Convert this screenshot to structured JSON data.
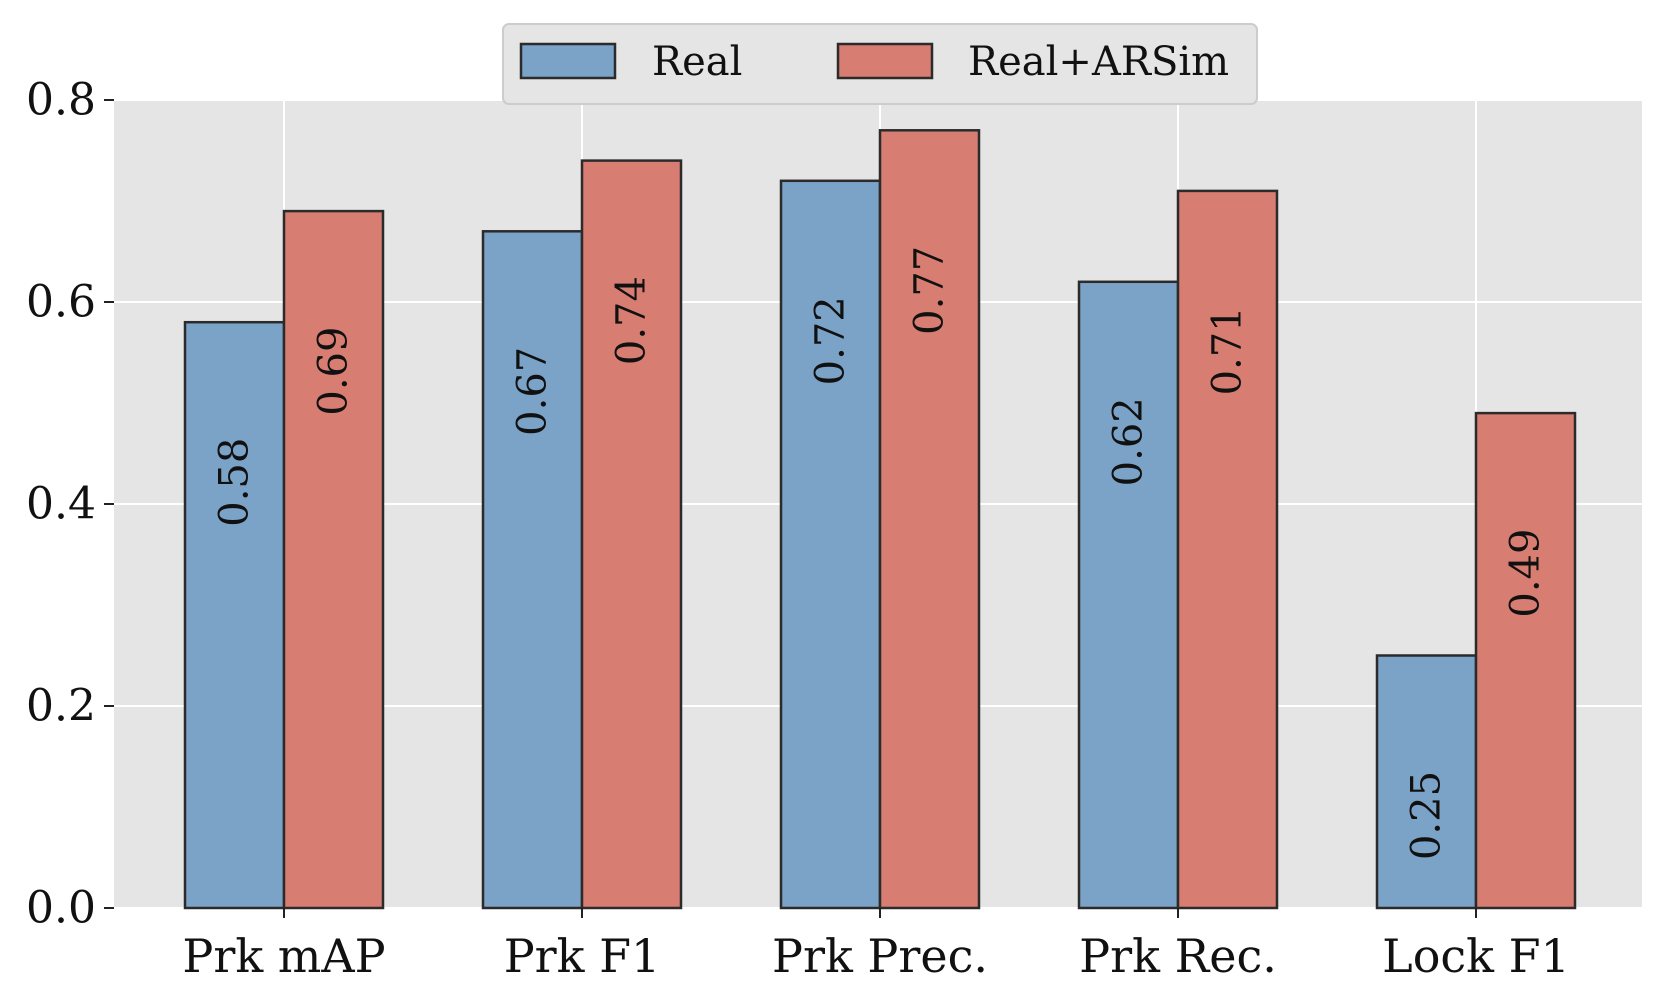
{
  "chart_data": {
    "type": "bar",
    "title": "",
    "xlabel": "",
    "ylabel": "",
    "categories": [
      "Prk mAP",
      "Prk F1",
      "Prk Prec.",
      "Prk Rec.",
      "Lock F1"
    ],
    "series": [
      {
        "name": "Real",
        "values": [
          0.58,
          0.67,
          0.72,
          0.62,
          0.25
        ],
        "labels": [
          "0.58",
          "0.67",
          "0.72",
          "0.62",
          "0.25"
        ],
        "color": "#7AA3C7"
      },
      {
        "name": "Real+ARSim",
        "values": [
          0.69,
          0.74,
          0.77,
          0.71,
          0.49
        ],
        "labels": [
          "0.69",
          "0.74",
          "0.77",
          "0.71",
          "0.49"
        ],
        "color": "#D87D71"
      }
    ],
    "ylim": [
      0,
      0.8
    ],
    "yticks": [
      0.0,
      0.2,
      0.4,
      0.6,
      0.8
    ],
    "ytick_labels": [
      "0.0",
      "0.2",
      "0.4",
      "0.6",
      "0.8"
    ],
    "grid": true,
    "legend_position": "top-center",
    "background_color": "#E5E5E5",
    "edge_color": "#2B2B2B"
  }
}
